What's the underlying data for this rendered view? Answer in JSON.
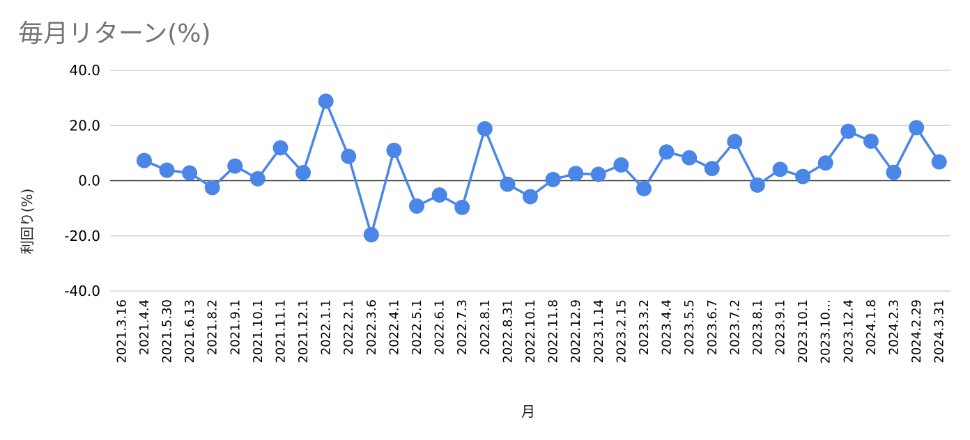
{
  "chart_data": {
    "type": "line",
    "title": "毎月リターン(%)",
    "xlabel": "月",
    "ylabel": "利回り(%)",
    "ylim": [
      -40,
      40
    ],
    "yticks": [
      40,
      20,
      0,
      -20,
      -40
    ],
    "ytick_labels": [
      "40.0",
      "20.0",
      "0.0",
      "-20.0",
      "-40.0"
    ],
    "grid": true,
    "legend": "none",
    "x": [
      "2021.3.16",
      "2021.4.4",
      "2021.5.30",
      "2021.6.13",
      "2021.8.2",
      "2021.9.1",
      "2021.10.1",
      "2021.11.1",
      "2021.12.1",
      "2022.1.1",
      "2022.2.1",
      "2022.3.6",
      "2022.4.1",
      "2022.5.1",
      "2022.6.1",
      "2022.7.3",
      "2022.8.1",
      "2022.8.31",
      "2022.10.1",
      "2022.11.8",
      "2022.12.9",
      "2023.1.14",
      "2023.2.15",
      "2023.3.2",
      "2023.4.4",
      "2023.5.5",
      "2023.6.7",
      "2023.7.2",
      "2023.8.1",
      "2023.9.1",
      "2023.10.1",
      "2023.10…",
      "2023.12.4",
      "2024.1.8",
      "2024.2.3",
      "2024.2.29",
      "2024.3.31"
    ],
    "series": [
      {
        "color": "#4a86e8",
        "values": [
          null,
          7.3,
          3.8,
          2.8,
          -2.5,
          5.3,
          0.7,
          11.9,
          2.9,
          28.8,
          8.8,
          -19.6,
          11.0,
          -9.2,
          -5.2,
          -9.7,
          18.8,
          -1.3,
          -5.8,
          0.4,
          2.6,
          2.3,
          5.7,
          -2.9,
          10.4,
          8.3,
          4.4,
          14.2,
          -1.6,
          4.1,
          1.5,
          6.4,
          17.9,
          14.3,
          3.0,
          19.2,
          6.8
        ]
      }
    ],
    "colors": {
      "line": "#4a86e8",
      "grid": "#cccccc",
      "zero_line": "#333333",
      "title": "#757575"
    }
  }
}
